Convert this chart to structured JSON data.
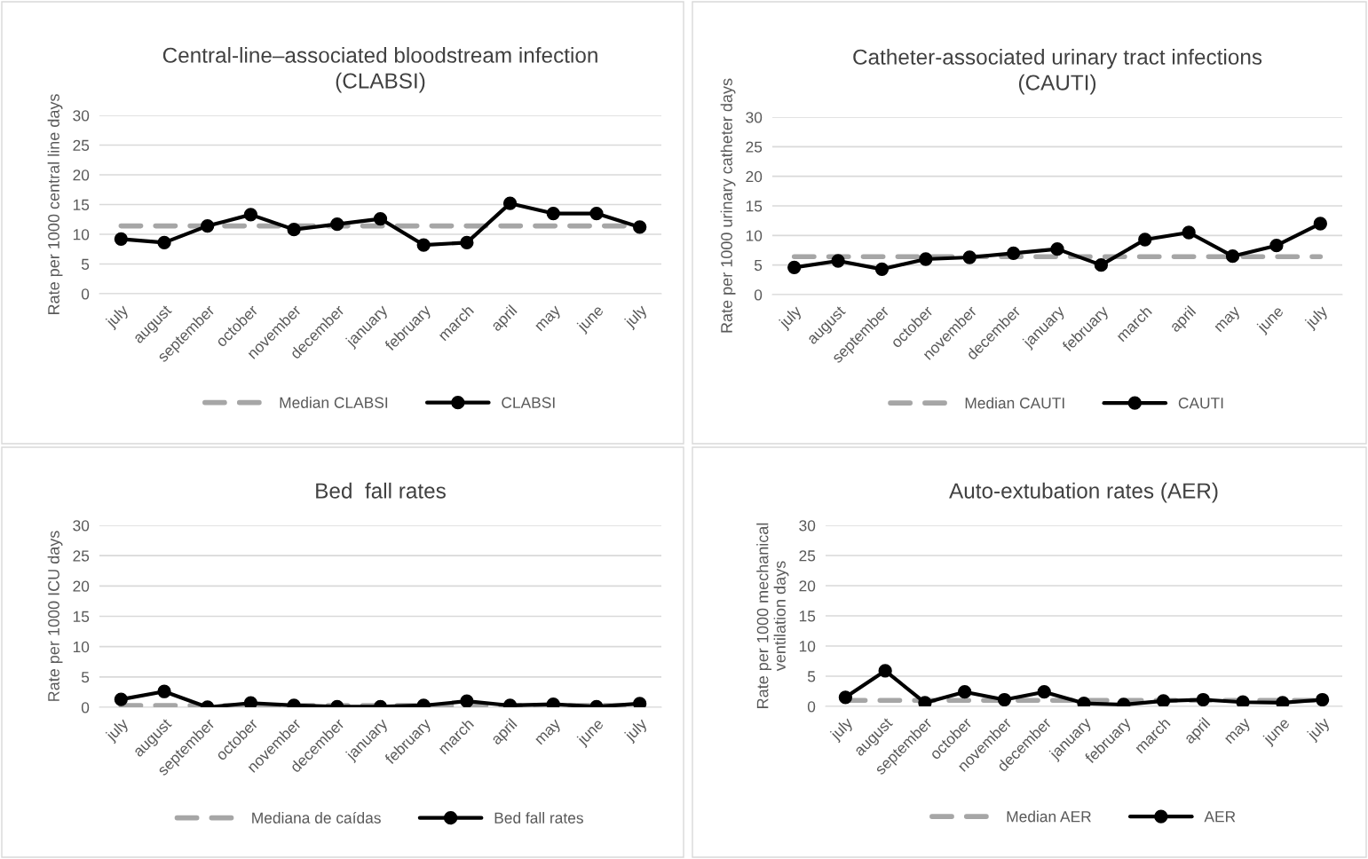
{
  "chart_data": [
    {
      "type": "line",
      "title": "Central-line–associated bloodstream infection\n(CLABSI)",
      "ylabel": "Rate per 1000 central line days",
      "categories": [
        "july",
        "august",
        "september",
        "october",
        "november",
        "december",
        "january",
        "february",
        "march",
        "april",
        "may",
        "june",
        "july"
      ],
      "series": [
        {
          "name": "Median CLABSI",
          "color": "#a6a6a6",
          "line_style": "dashed",
          "marker": "none",
          "values": [
            11.4,
            11.4,
            11.4,
            11.4,
            11.4,
            11.4,
            11.4,
            11.4,
            11.4,
            11.4,
            11.4,
            11.4,
            11.4
          ]
        },
        {
          "name": "CLABSI",
          "color": "#000000",
          "line_style": "solid",
          "marker": "circle",
          "values": [
            9.2,
            8.6,
            11.4,
            13.3,
            10.8,
            11.7,
            12.6,
            8.2,
            8.6,
            15.2,
            13.5,
            13.5,
            11.2
          ]
        }
      ],
      "ylim": [
        0,
        30
      ],
      "yticks": [
        0,
        5,
        10,
        15,
        20,
        25,
        30
      ],
      "grid": "y",
      "legend": "bottom"
    },
    {
      "type": "line",
      "title": "Catheter-associated urinary tract infections\n(CAUTI)",
      "ylabel": "Rate per 1000 urinary catheter days",
      "categories": [
        "july",
        "august",
        "september",
        "october",
        "november",
        "december",
        "january",
        "february",
        "march",
        "april",
        "may",
        "june",
        "july"
      ],
      "series": [
        {
          "name": "Median CAUTI",
          "color": "#a6a6a6",
          "line_style": "dashed",
          "marker": "none",
          "values": [
            6.4,
            6.4,
            6.4,
            6.4,
            6.4,
            6.4,
            6.4,
            6.4,
            6.4,
            6.4,
            6.4,
            6.4,
            6.4
          ]
        },
        {
          "name": "CAUTI",
          "color": "#000000",
          "line_style": "solid",
          "marker": "circle",
          "values": [
            4.6,
            5.7,
            4.3,
            6.0,
            6.3,
            7.0,
            7.7,
            5.0,
            9.3,
            10.5,
            6.5,
            8.3,
            12.0
          ]
        }
      ],
      "ylim": [
        0,
        30
      ],
      "yticks": [
        0,
        5,
        10,
        15,
        20,
        25,
        30
      ],
      "grid": "y",
      "legend": "bottom"
    },
    {
      "type": "line",
      "title": "Bed  fall rates",
      "ylabel": "Rate per 1000 ICU days",
      "categories": [
        "july",
        "august",
        "september",
        "october",
        "november",
        "december",
        "january",
        "february",
        "march",
        "april",
        "may",
        "june",
        "july"
      ],
      "series": [
        {
          "name": "Mediana de caídas",
          "color": "#a6a6a6",
          "line_style": "dashed",
          "marker": "none",
          "values": [
            0.3,
            0.3,
            0.3,
            0.3,
            0.3,
            0.3,
            0.3,
            0.3,
            0.3,
            0.3,
            0.3,
            0.3,
            0.3
          ]
        },
        {
          "name": "Bed fall rates",
          "color": "#000000",
          "line_style": "solid",
          "marker": "circle",
          "values": [
            1.3,
            2.6,
            0.0,
            0.7,
            0.3,
            0.1,
            0.1,
            0.3,
            1.0,
            0.3,
            0.5,
            0.1,
            0.6
          ]
        }
      ],
      "ylim": [
        0,
        30
      ],
      "yticks": [
        0,
        5,
        10,
        15,
        20,
        25,
        30
      ],
      "grid": "y",
      "legend": "bottom"
    },
    {
      "type": "line",
      "title": "Auto-extubation rates (AER)",
      "ylabel": "Rate per 1000 mechanical\nventilation days",
      "categories": [
        "july",
        "august",
        "september",
        "october",
        "november",
        "december",
        "january",
        "february",
        "march",
        "april",
        "may",
        "june",
        "july"
      ],
      "series": [
        {
          "name": "Median AER",
          "color": "#a6a6a6",
          "line_style": "dashed",
          "marker": "none",
          "values": [
            1.0,
            1.0,
            1.0,
            1.0,
            1.0,
            1.0,
            1.0,
            1.0,
            1.0,
            1.0,
            1.0,
            1.0,
            1.0
          ]
        },
        {
          "name": "AER",
          "color": "#000000",
          "line_style": "solid",
          "marker": "circle",
          "values": [
            1.5,
            5.9,
            0.6,
            2.4,
            1.1,
            2.4,
            0.5,
            0.3,
            0.9,
            1.1,
            0.7,
            0.6,
            1.1
          ]
        }
      ],
      "ylim": [
        0,
        30
      ],
      "yticks": [
        0,
        5,
        10,
        15,
        20,
        25,
        30
      ],
      "grid": "y",
      "legend": "bottom"
    }
  ]
}
